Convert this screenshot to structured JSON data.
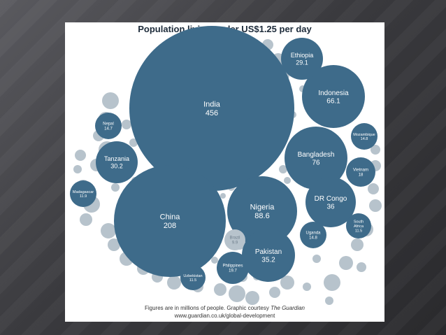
{
  "chart_data": {
    "type": "bubble",
    "title": "Population living under US$1.25 per day",
    "caption_prefix": "Figures are in millions of people. Graphic courtesy ",
    "caption_source": "The Guardian",
    "caption_url": "www.guardian.co.uk/global-development",
    "colors": {
      "bubble": "#3e6b8a",
      "filler": "#b7c3cc",
      "label": "#ffffff",
      "brazil_label": "#6f7f8c"
    },
    "series": [
      {
        "name": "India",
        "value": 456
      },
      {
        "name": "China",
        "value": 208
      },
      {
        "name": "Nigeria",
        "value": 88.6
      },
      {
        "name": "Bangladesh",
        "value": 76
      },
      {
        "name": "Indonesia",
        "value": 66.1
      },
      {
        "name": "DR Congo",
        "value": 36
      },
      {
        "name": "Pakistan",
        "value": 35.2
      },
      {
        "name": "Tanzania",
        "value": 30.2
      },
      {
        "name": "Ethiopia",
        "value": 29.1
      },
      {
        "name": "Philippines",
        "value": 19.7
      },
      {
        "name": "Vietnam",
        "value": 18
      },
      {
        "name": "Mozambique",
        "value": 14.8
      },
      {
        "name": "Uganda",
        "value": 14.8
      },
      {
        "name": "Nepal",
        "value": 14.7
      },
      {
        "name": "Madagascar",
        "value": 11.9
      },
      {
        "name": "South Africa",
        "value": 11.5
      },
      {
        "name": "Uzbekistan",
        "value": 11.5
      },
      {
        "name": "Brazil",
        "value": 9.9
      }
    ]
  }
}
